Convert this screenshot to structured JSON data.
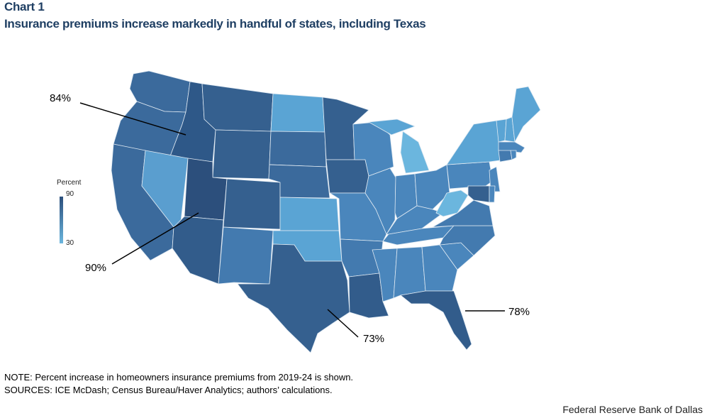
{
  "header": {
    "chart_number": "Chart 1",
    "title": "Insurance premiums increase markedly in handful of states, including Texas"
  },
  "legend": {
    "title": "Percent",
    "max_label": "90",
    "min_label": "30",
    "color_high": "#2c4f7c",
    "color_low": "#6bb6de"
  },
  "callouts": [
    {
      "id": "idaho",
      "label": "84%"
    },
    {
      "id": "utah",
      "label": "90%"
    },
    {
      "id": "texas",
      "label": "73%"
    },
    {
      "id": "florida",
      "label": "78%"
    }
  ],
  "chart_data": {
    "type": "choropleth",
    "title": "Insurance premiums increase markedly in handful of states, including Texas",
    "measure": "Percent increase in homeowners insurance premiums, 2019-24",
    "scale_range": [
      30,
      90
    ],
    "annotated_values": [
      {
        "state": "Idaho",
        "value": 84
      },
      {
        "state": "Utah",
        "value": 90
      },
      {
        "state": "Texas",
        "value": 73
      },
      {
        "state": "Florida",
        "value": 78
      }
    ]
  },
  "footnotes": {
    "note": "NOTE: Percent increase in homeowners insurance premiums from 2019-24 is shown.",
    "sources": "SOURCES: ICE McDash; Census Bureau/Haver Analytics; authors’ calculations."
  },
  "footer": {
    "credit": "Federal Reserve Bank of Dallas"
  }
}
